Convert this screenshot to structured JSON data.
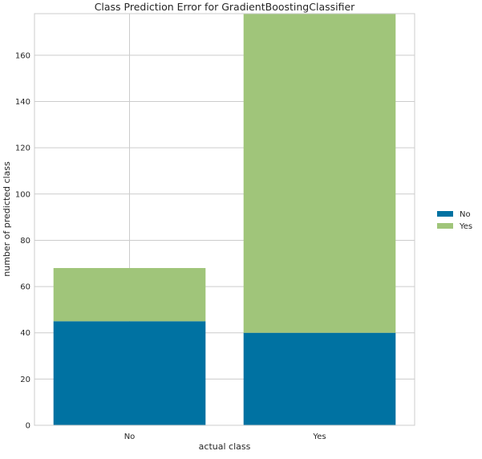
{
  "chart_data": {
    "type": "bar",
    "stacked": true,
    "title": "Class Prediction Error for GradientBoostingClassifier",
    "xlabel": "actual class",
    "ylabel": "number of predicted class",
    "categories": [
      "No",
      "Yes"
    ],
    "series": [
      {
        "name": "No",
        "values": [
          45,
          40
        ],
        "color": "#0072a2"
      },
      {
        "name": "Yes",
        "values": [
          23,
          138
        ],
        "color": "#a0c57a"
      }
    ],
    "ylim": [
      0,
      178
    ],
    "yticks": [
      0,
      20,
      40,
      60,
      80,
      100,
      120,
      140,
      160
    ],
    "grid": true,
    "legend_position": "right"
  }
}
